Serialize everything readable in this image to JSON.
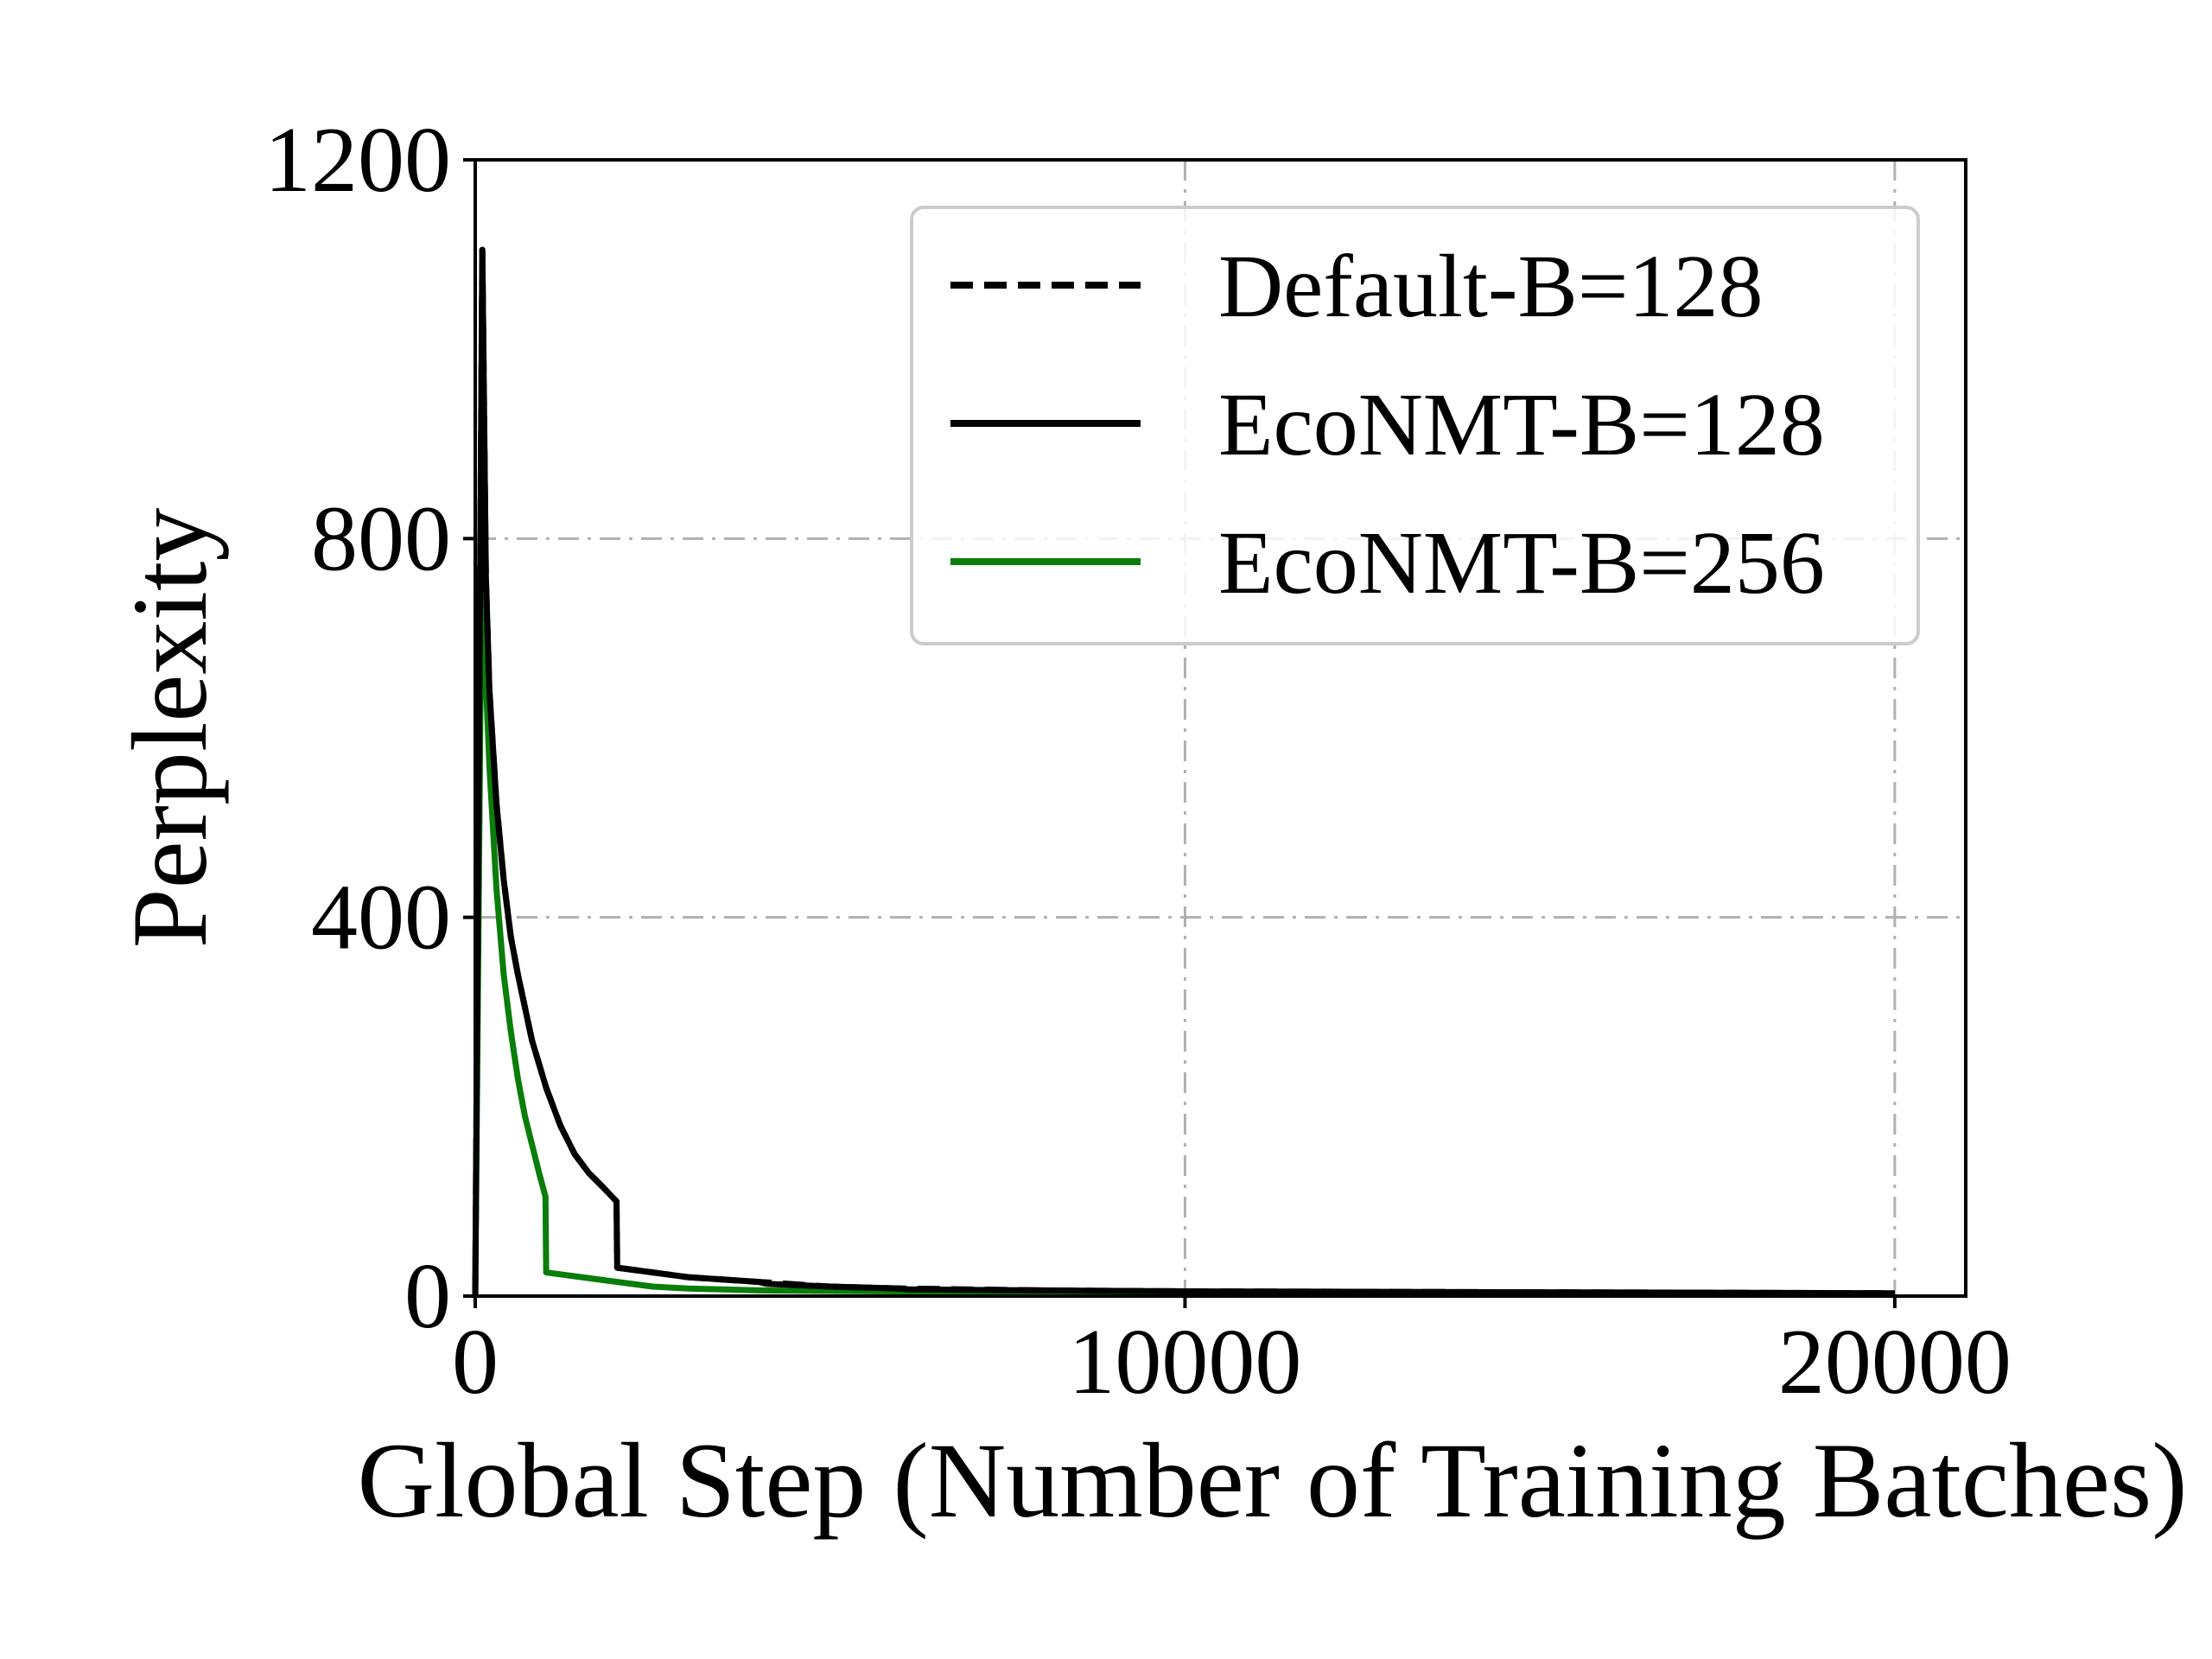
{
  "chart_data": {
    "type": "line",
    "title": "",
    "xlabel": "Global Step (Number of Training Batches)",
    "ylabel": "Perplexity",
    "xlim": [
      0,
      21000
    ],
    "ylim": [
      0,
      1200
    ],
    "xticks": [
      0,
      10000,
      20000
    ],
    "xtick_labels": [
      "0",
      "10000",
      "20000"
    ],
    "yticks": [
      0,
      400,
      800,
      1200
    ],
    "ytick_labels": [
      "0",
      "400",
      "800",
      "1200"
    ],
    "grid": true,
    "grid_style": "dash-dot, light gray",
    "legend_position": "top-right",
    "series": [
      {
        "name": "Default-B=128",
        "color": "#000000",
        "style": "dashed",
        "x": [
          0,
          100,
          150,
          200,
          300,
          400,
          500,
          600,
          800,
          1000,
          1200,
          1400,
          1600,
          1800,
          1990,
          2000,
          2500,
          3000,
          4000,
          5000,
          6000,
          8000,
          10000,
          15000,
          20000
        ],
        "y": [
          0,
          1105,
          760,
          640,
          520,
          440,
          380,
          340,
          270,
          220,
          180,
          150,
          130,
          115,
          100,
          30,
          25,
          20,
          15,
          10,
          8,
          6,
          5,
          4,
          3
        ]
      },
      {
        "name": "EcoNMT-B=128",
        "color": "#000000",
        "style": "solid",
        "x": [
          0,
          100,
          150,
          200,
          300,
          400,
          500,
          600,
          800,
          1000,
          1200,
          1400,
          1600,
          1800,
          1990,
          2000,
          2500,
          3000,
          4000,
          4100,
          5000,
          6000,
          6100,
          8000,
          10000,
          15000,
          20000
        ],
        "y": [
          0,
          1105,
          760,
          640,
          520,
          440,
          380,
          340,
          270,
          220,
          180,
          150,
          130,
          115,
          100,
          30,
          25,
          20,
          15,
          13,
          10,
          8,
          7,
          6,
          5,
          4,
          3
        ]
      },
      {
        "name": "EcoNMT-B=256",
        "color": "#0a7d0a",
        "style": "solid",
        "x": [
          0,
          100,
          150,
          200,
          300,
          400,
          500,
          600,
          700,
          800,
          900,
          990,
          1000,
          1500,
          2000,
          2500,
          3000,
          4000,
          6000,
          10000
        ],
        "y": [
          0,
          850,
          650,
          560,
          430,
          340,
          280,
          230,
          190,
          160,
          130,
          105,
          25,
          20,
          15,
          10,
          8,
          6,
          5,
          3
        ]
      }
    ]
  }
}
